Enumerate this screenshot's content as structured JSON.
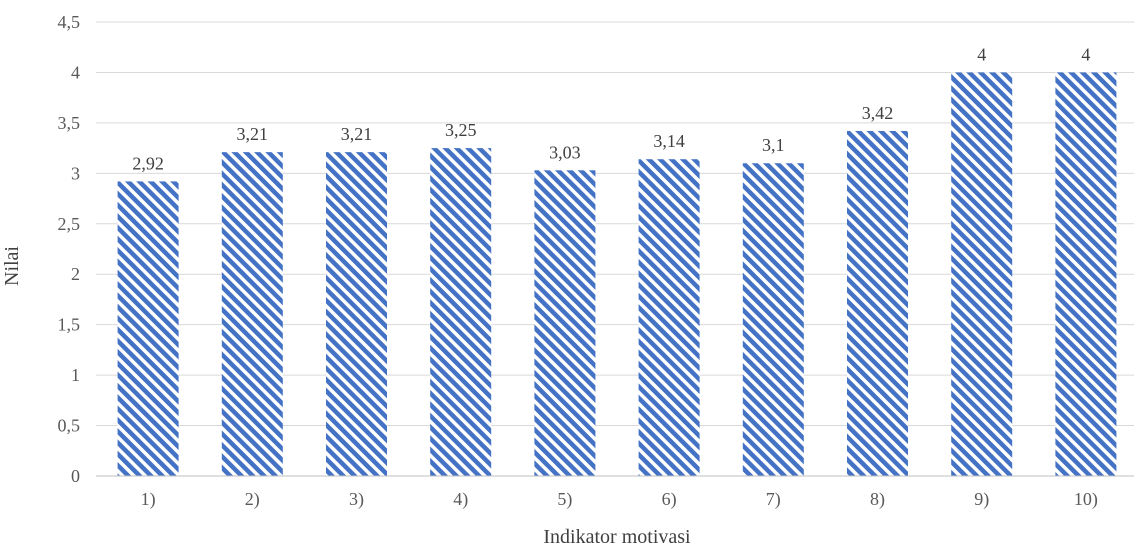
{
  "chart_data": {
    "type": "bar",
    "categories": [
      "1)",
      "2)",
      "3)",
      "4)",
      "5)",
      "6)",
      "7)",
      "8)",
      "9)",
      "10)"
    ],
    "values": [
      2.92,
      3.21,
      3.21,
      3.25,
      3.03,
      3.14,
      3.1,
      3.42,
      4,
      4
    ],
    "data_labels": [
      "2,92",
      "3,21",
      "3,21",
      "3,25",
      "3,03",
      "3,14",
      "3,1",
      "3,42",
      "4",
      "4"
    ],
    "y_ticks": [
      0,
      0.5,
      1,
      1.5,
      2,
      2.5,
      3,
      3.5,
      4,
      4.5
    ],
    "y_tick_labels": [
      "0",
      "0,5",
      "1",
      "1,5",
      "2",
      "2,5",
      "3",
      "3,5",
      "4",
      "4,5"
    ],
    "title": "",
    "xlabel": "Indikator motivasi",
    "ylabel": "Nilai",
    "ylim": [
      0,
      4.5
    ],
    "grid": true,
    "legend": "none",
    "bar_pattern": "diagonal-stripes",
    "colors": {
      "bar_stripe": "#4472c4",
      "bar_background": "#ffffff",
      "gridline": "#d9d9d9",
      "axis_line": "#bfbfbf",
      "tick_text": "#595959",
      "label_text": "#404040"
    }
  }
}
